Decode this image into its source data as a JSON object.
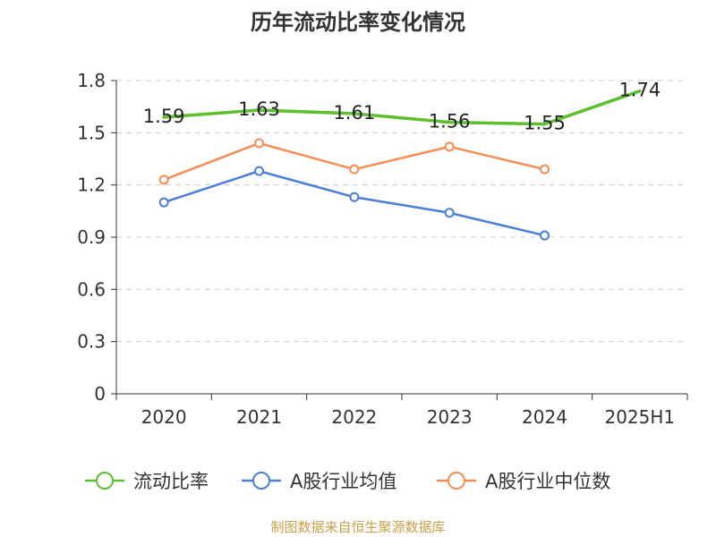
{
  "chart_data": {
    "type": "line",
    "title": "历年流动比率变化情况",
    "categories": [
      "2020",
      "2021",
      "2022",
      "2023",
      "2024",
      "2025H1"
    ],
    "yticks": [
      "0",
      "0.3",
      "0.6",
      "0.9",
      "1.2",
      "1.5",
      "1.8"
    ],
    "ylim": [
      0,
      1.8
    ],
    "grid": true,
    "legend_position": "bottom",
    "series": [
      {
        "name": "流动比率",
        "color": "#5dbf2e",
        "values": [
          1.59,
          1.63,
          1.61,
          1.56,
          1.55,
          1.74
        ],
        "labels": [
          "1.59",
          "1.63",
          "1.61",
          "1.56",
          "1.55",
          "1.74"
        ],
        "markers": false
      },
      {
        "name": "A股行业均值",
        "color": "#4a7fd4",
        "values": [
          1.1,
          1.28,
          1.13,
          1.04,
          0.91,
          null
        ],
        "markers": true
      },
      {
        "name": "A股行业中位数",
        "color": "#f58d55",
        "values": [
          1.23,
          1.44,
          1.29,
          1.42,
          1.29,
          null
        ],
        "markers": true
      }
    ],
    "source": "制图数据来自恒生聚源数据库"
  }
}
